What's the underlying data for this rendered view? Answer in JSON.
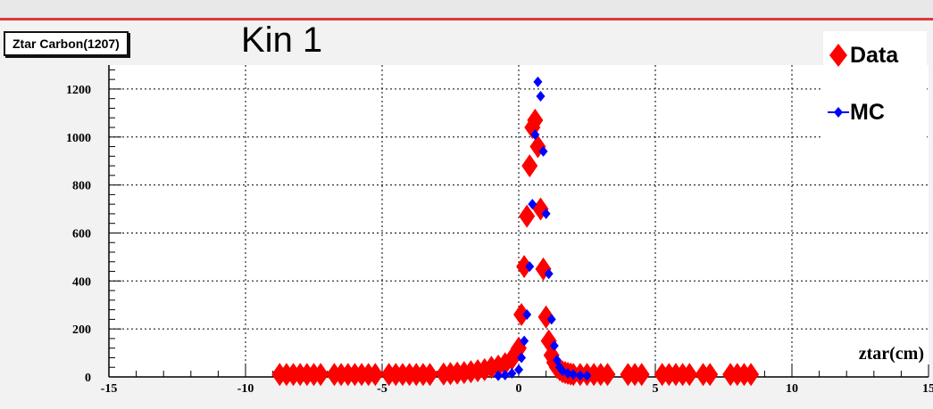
{
  "header": {
    "stat_box_title": "Ztar Carbon(1207)",
    "kin_label": "Kin 1"
  },
  "legend": {
    "entries": [
      {
        "label": "Data",
        "color": "#ff0000",
        "marker": "diamond-large"
      },
      {
        "label": "MC",
        "color": "#0000ff",
        "marker": "diamond-small-with-line"
      }
    ]
  },
  "chart_data": {
    "type": "scatter",
    "title": "",
    "xlabel": "ztar(cm)",
    "ylabel": "",
    "xlim": [
      -15,
      15
    ],
    "ylim": [
      0,
      1300
    ],
    "grid": true,
    "legend_position": "top-right",
    "x_ticks": [
      -15,
      -10,
      -5,
      0,
      5,
      10,
      15
    ],
    "x_tick_labels": [
      "-15",
      "-10",
      "-5",
      "0",
      "5",
      "10",
      "15"
    ],
    "y_ticks": [
      0,
      200,
      400,
      600,
      800,
      1000,
      1200
    ],
    "y_tick_labels": [
      "0",
      "200",
      "400",
      "600",
      "800",
      "1000",
      "1200"
    ],
    "series": [
      {
        "name": "Data",
        "color": "#ff0000",
        "x": [
          -8.75,
          -8.5,
          -8.25,
          -8.0,
          -7.75,
          -7.5,
          -7.25,
          -6.75,
          -6.5,
          -6.25,
          -6.0,
          -5.75,
          -5.5,
          -5.25,
          -4.75,
          -4.5,
          -4.25,
          -4.0,
          -3.75,
          -3.5,
          -3.25,
          -2.75,
          -2.5,
          -2.25,
          -2.0,
          -1.75,
          -1.5,
          -1.25,
          -1.0,
          -0.75,
          -0.5,
          -0.25,
          0.0,
          0.1,
          0.2,
          0.3,
          0.4,
          0.5,
          0.6,
          0.7,
          0.8,
          0.9,
          1.0,
          1.1,
          1.2,
          1.3,
          1.4,
          1.5,
          1.6,
          1.7,
          1.8,
          1.9,
          2.0,
          2.25,
          2.5,
          2.75,
          3.0,
          3.25,
          4.0,
          4.25,
          4.5,
          5.25,
          5.5,
          5.75,
          6.0,
          6.25,
          6.75,
          7.0,
          7.75,
          8.0,
          8.25,
          8.5
        ],
        "y": [
          10,
          10,
          10,
          10,
          10,
          10,
          10,
          10,
          10,
          10,
          10,
          10,
          10,
          10,
          10,
          10,
          10,
          10,
          10,
          10,
          10,
          12,
          14,
          16,
          18,
          22,
          26,
          30,
          40,
          45,
          55,
          75,
          120,
          260,
          460,
          670,
          880,
          1040,
          1070,
          960,
          700,
          450,
          250,
          150,
          90,
          60,
          40,
          30,
          22,
          18,
          15,
          12,
          10,
          10,
          10,
          10,
          10,
          10,
          10,
          10,
          10,
          10,
          10,
          10,
          10,
          10,
          10,
          10,
          10,
          10,
          10,
          10
        ]
      },
      {
        "name": "MC",
        "color": "#0000ff",
        "x": [
          -0.75,
          -0.5,
          -0.25,
          0.0,
          0.1,
          0.2,
          0.3,
          0.4,
          0.5,
          0.6,
          0.7,
          0.8,
          0.9,
          1.0,
          1.1,
          1.2,
          1.3,
          1.4,
          1.5,
          1.6,
          1.8,
          2.0,
          2.25,
          2.5
        ],
        "y": [
          5,
          8,
          15,
          30,
          80,
          150,
          260,
          460,
          720,
          1010,
          1230,
          1170,
          940,
          680,
          430,
          240,
          130,
          70,
          40,
          25,
          15,
          10,
          6,
          5
        ]
      }
    ]
  }
}
